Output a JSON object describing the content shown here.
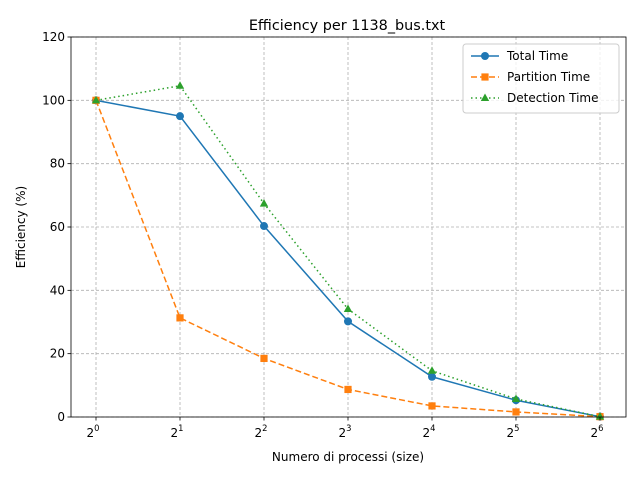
{
  "chart_data": {
    "type": "line",
    "title": "Efficiency per 1138_bus.txt",
    "xlabel": "Numero di processi (size)",
    "ylabel": "Efficiency (%)",
    "x_scale": "log2",
    "x": [
      1,
      2,
      4,
      8,
      16,
      32,
      64
    ],
    "x_tick_labels": [
      {
        "base": "2",
        "exp": "0"
      },
      {
        "base": "2",
        "exp": "1"
      },
      {
        "base": "2",
        "exp": "2"
      },
      {
        "base": "2",
        "exp": "3"
      },
      {
        "base": "2",
        "exp": "4"
      },
      {
        "base": "2",
        "exp": "5"
      },
      {
        "base": "2",
        "exp": "6"
      }
    ],
    "ylim": [
      0,
      120
    ],
    "y_ticks": [
      "0",
      "20",
      "40",
      "60",
      "80",
      "100",
      "120"
    ],
    "grid": true,
    "legend_position": "top-right",
    "series": [
      {
        "name": "Total Time",
        "values": [
          100,
          95,
          60.3,
          30.2,
          12.7,
          5.3,
          0.1
        ],
        "color": "#1f77b4",
        "marker": "circle",
        "line_style": "solid"
      },
      {
        "name": "Partition Time",
        "values": [
          100,
          31.3,
          18.5,
          8.7,
          3.5,
          1.6,
          0.1
        ],
        "color": "#ff7f0e",
        "marker": "square",
        "line_style": "dashed"
      },
      {
        "name": "Detection Time",
        "values": [
          100,
          104.6,
          67.4,
          34.1,
          14.6,
          5.7,
          0.1
        ],
        "color": "#2ca02c",
        "marker": "triangle",
        "line_style": "dotted"
      }
    ]
  }
}
